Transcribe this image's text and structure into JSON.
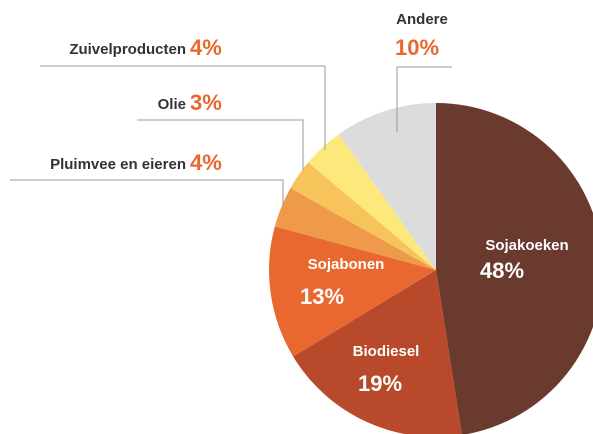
{
  "chart_data": {
    "type": "pie",
    "categories": [
      "Sojakoeken",
      "Biodiesel",
      "Sojabonen",
      "Pluimvee en eieren",
      "Olie",
      "Zuivelproducten",
      "Andere"
    ],
    "values": [
      48,
      19,
      13,
      4,
      3,
      4,
      10
    ],
    "value_labels": [
      "48%",
      "19%",
      "13%",
      "4%",
      "3%",
      "4%",
      "10%"
    ],
    "colors": [
      "#6b3a2f",
      "#b8492a",
      "#e8682f",
      "#ef9a4b",
      "#f7c45b",
      "#fde87b",
      "#dcdcdc"
    ]
  }
}
